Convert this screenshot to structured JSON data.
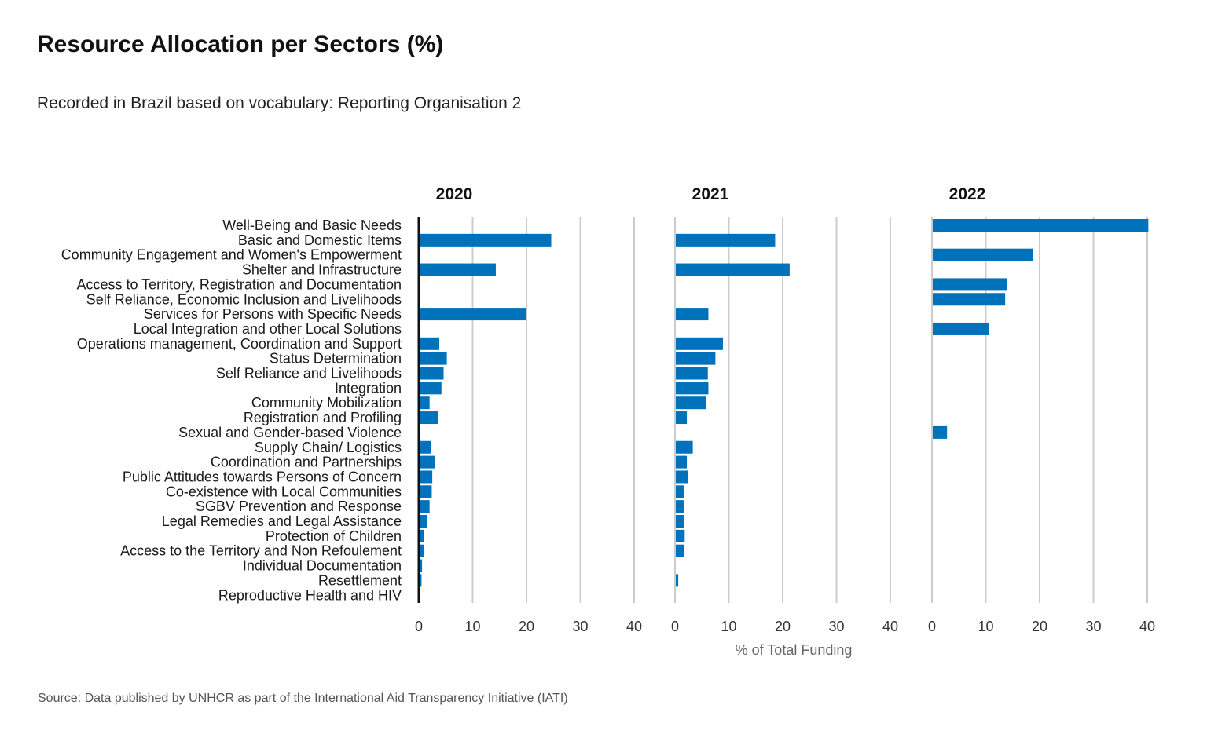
{
  "title": "Resource  Allocation per Sectors (%)",
  "subtitle": "Recorded in Brazil based on vocabulary: Reporting Organisation 2",
  "source": "Source: Data published by UNHCR as part of the International  Aid Transparency Initiative (IATI)",
  "colors": {
    "bar": "#0072bc",
    "grid": "#cccccc",
    "axis": "#111111"
  },
  "chart_data": {
    "type": "bar",
    "orientation": "horizontal",
    "xlabel": "% of Total Funding",
    "xlim": [
      0,
      40
    ],
    "xticks": [
      0,
      10,
      20,
      30,
      40
    ],
    "grid": true,
    "categories": [
      "Well-Being and Basic Needs",
      "Basic and Domestic Items",
      "Community Engagement and Women's Empowerment",
      "Shelter and Infrastructure",
      "Access to Territory, Registration and Documentation",
      "Self Reliance, Economic Inclusion and Livelihoods",
      "Services for Persons with Specific Needs",
      "Local Integration and other Local Solutions",
      "Operations management, Coordination and Support",
      "Status Determination",
      "Self Reliance and Livelihoods",
      "Integration",
      "Community Mobilization",
      "Registration and Profiling",
      "Sexual and Gender-based Violence",
      "Supply Chain/ Logistics",
      "Coordination and Partnerships",
      "Public Attitudes towards Persons of Concern",
      "Co-existence with Local Communities",
      "SGBV Prevention and Response",
      "Legal Remedies and Legal Assistance",
      "Protection of Children",
      "Access to the Territory and Non Refoulement",
      "Individual Documentation",
      "Resettlement",
      "Reproductive Health and HIV"
    ],
    "panels": [
      {
        "name": "2020",
        "values": [
          null,
          24.6,
          null,
          14.3,
          null,
          null,
          19.9,
          null,
          3.8,
          5.2,
          4.6,
          4.2,
          2.0,
          3.5,
          null,
          2.2,
          3.0,
          2.5,
          2.4,
          2.0,
          1.5,
          1.0,
          1.0,
          0.6,
          0.5,
          0.2
        ]
      },
      {
        "name": "2021",
        "values": [
          null,
          18.6,
          null,
          21.3,
          null,
          null,
          6.2,
          null,
          8.9,
          7.5,
          6.1,
          6.2,
          5.8,
          2.2,
          null,
          3.3,
          2.2,
          2.4,
          1.6,
          1.6,
          1.6,
          1.8,
          1.7,
          null,
          0.6,
          null
        ]
      },
      {
        "name": "2022",
        "values": [
          40.2,
          null,
          18.8,
          null,
          14.0,
          13.6,
          null,
          10.6,
          null,
          null,
          null,
          null,
          null,
          null,
          2.8,
          null,
          null,
          null,
          null,
          null,
          null,
          null,
          null,
          null,
          null,
          null
        ]
      }
    ]
  }
}
